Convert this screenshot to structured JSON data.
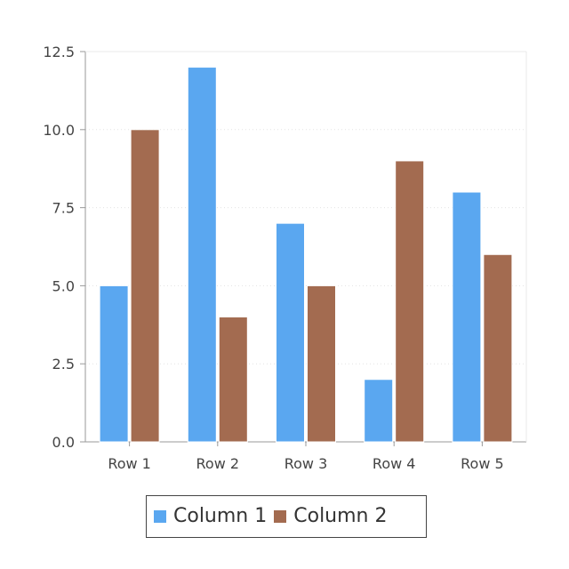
{
  "chart_data": {
    "type": "bar",
    "categories": [
      "Row 1",
      "Row 2",
      "Row 3",
      "Row 4",
      "Row 5"
    ],
    "series": [
      {
        "name": "Column 1",
        "values": [
          5,
          12,
          7,
          2,
          8
        ],
        "color": "#5aa7f0"
      },
      {
        "name": "Column 2",
        "values": [
          10,
          4,
          5,
          9,
          6
        ],
        "color": "#a36b50"
      }
    ],
    "yticks": [
      "0.0",
      "2.5",
      "5.0",
      "7.5",
      "10.0",
      "12.5"
    ],
    "ylim": [
      0,
      12.5
    ],
    "grid": true,
    "legend_position": "bottom"
  }
}
